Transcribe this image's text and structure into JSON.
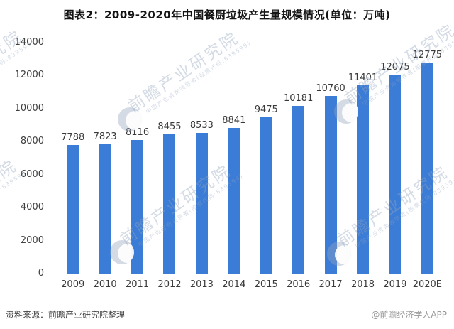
{
  "title": "图表2：2009-2020年中国餐厨垃圾产生量规模情况(单位：万吨)",
  "chart_data": {
    "type": "bar",
    "title": "图表2：2009-2020年中国餐厨垃圾产生量规模情况(单位：万吨)",
    "unit": "万吨",
    "categories": [
      "2009",
      "2010",
      "2011",
      "2012",
      "2013",
      "2014",
      "2015",
      "2016",
      "2017",
      "2018",
      "2019",
      "2020E"
    ],
    "values": [
      7788,
      7823,
      8116,
      8455,
      8533,
      8841,
      9475,
      10181,
      10760,
      11401,
      12075,
      12775
    ],
    "ylim": [
      0,
      14000
    ],
    "yticks": [
      0,
      2000,
      4000,
      6000,
      8000,
      10000,
      12000,
      14000
    ],
    "grid": false,
    "legend_position": "none",
    "data_labels": true,
    "bar_color": "#3b7cd6",
    "label_color": "#3a3a3a"
  },
  "footer": {
    "source": "资料来源：前瞻产业研究院整理",
    "credit": "@前瞻经济学人APP"
  },
  "watermark": {
    "brand": "前瞻产业研究院",
    "subtext": "中国产业咨询领导者(股票代码:839599)",
    "logo": "qianzhan-logo"
  }
}
